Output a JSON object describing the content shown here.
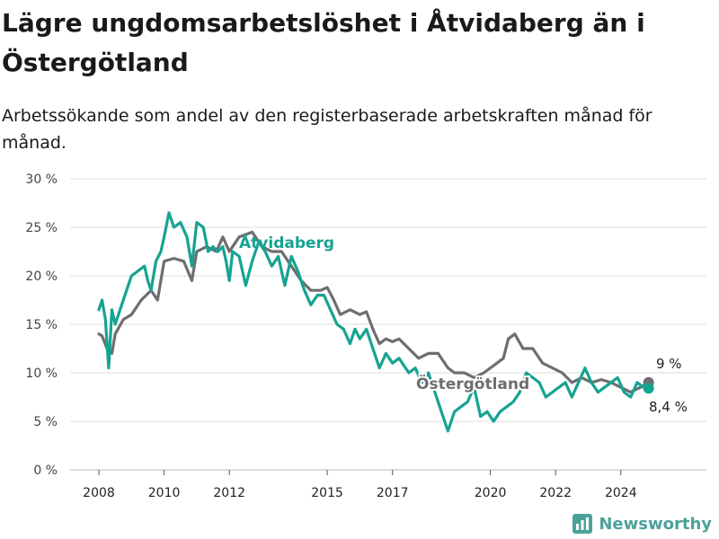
{
  "title": "Lägre ungdomsarbetslöshet i Åtvidaberg än i Östergötland",
  "subtitle": "Arbetssökande som andel av den registerbaserade arbetskraften månad för månad.",
  "brand": "Newsworthy",
  "colors": {
    "atvidaberg": "#16a392",
    "ostergotland": "#6e6e71",
    "grid": "#dddddd"
  },
  "chart_data": {
    "type": "line",
    "ylim": [
      0,
      30
    ],
    "xlim": [
      2007.5,
      2025.75
    ],
    "y_ticks": [
      0,
      5,
      10,
      15,
      20,
      25,
      30
    ],
    "y_tick_labels": [
      "0 %",
      "5 %",
      "10 %",
      "15 %",
      "20 %",
      "25 %",
      "30 %"
    ],
    "x_ticks": [
      2008,
      2010,
      2012,
      2015,
      2017,
      2020,
      2022,
      2024
    ],
    "x_tick_labels": [
      "2008",
      "2010",
      "2012",
      "2015",
      "2017",
      "2020",
      "2022",
      "2024"
    ],
    "grid": "horizontal",
    "series": [
      {
        "name": "Östergötland",
        "end_label": "9 %",
        "points": [
          [
            2008.0,
            14.0
          ],
          [
            2008.1,
            13.8
          ],
          [
            2008.25,
            12.5
          ],
          [
            2008.4,
            12.0
          ],
          [
            2008.5,
            14.0
          ],
          [
            2008.75,
            15.5
          ],
          [
            2009.0,
            16.0
          ],
          [
            2009.3,
            17.5
          ],
          [
            2009.6,
            18.5
          ],
          [
            2009.8,
            17.5
          ],
          [
            2010.0,
            21.5
          ],
          [
            2010.3,
            21.8
          ],
          [
            2010.6,
            21.5
          ],
          [
            2010.85,
            19.5
          ],
          [
            2011.0,
            22.5
          ],
          [
            2011.3,
            23.0
          ],
          [
            2011.6,
            22.5
          ],
          [
            2011.8,
            24.0
          ],
          [
            2012.0,
            22.5
          ],
          [
            2012.3,
            24.0
          ],
          [
            2012.7,
            24.5
          ],
          [
            2013.0,
            23.0
          ],
          [
            2013.3,
            22.5
          ],
          [
            2013.6,
            22.5
          ],
          [
            2013.9,
            21.0
          ],
          [
            2014.2,
            19.5
          ],
          [
            2014.5,
            18.5
          ],
          [
            2014.8,
            18.5
          ],
          [
            2015.0,
            18.8
          ],
          [
            2015.2,
            17.5
          ],
          [
            2015.4,
            16.0
          ],
          [
            2015.7,
            16.5
          ],
          [
            2016.0,
            16.0
          ],
          [
            2016.2,
            16.3
          ],
          [
            2016.4,
            14.5
          ],
          [
            2016.6,
            13.0
          ],
          [
            2016.8,
            13.5
          ],
          [
            2017.0,
            13.2
          ],
          [
            2017.2,
            13.5
          ],
          [
            2017.5,
            12.5
          ],
          [
            2017.8,
            11.5
          ],
          [
            2018.1,
            12.0
          ],
          [
            2018.4,
            12.0
          ],
          [
            2018.7,
            10.5
          ],
          [
            2018.9,
            10.0
          ],
          [
            2019.2,
            10.0
          ],
          [
            2019.5,
            9.5
          ],
          [
            2019.8,
            10.0
          ],
          [
            2020.0,
            10.5
          ],
          [
            2020.2,
            11.0
          ],
          [
            2020.4,
            11.5
          ],
          [
            2020.55,
            13.5
          ],
          [
            2020.75,
            14.0
          ],
          [
            2021.0,
            12.5
          ],
          [
            2021.3,
            12.5
          ],
          [
            2021.6,
            11.0
          ],
          [
            2021.9,
            10.5
          ],
          [
            2022.2,
            10.0
          ],
          [
            2022.5,
            9.0
          ],
          [
            2022.8,
            9.5
          ],
          [
            2023.1,
            9.0
          ],
          [
            2023.4,
            9.3
          ],
          [
            2023.7,
            9.0
          ],
          [
            2024.0,
            8.5
          ],
          [
            2024.3,
            8.0
          ],
          [
            2024.6,
            8.5
          ],
          [
            2024.85,
            9.0
          ]
        ]
      },
      {
        "name": "Åtvidaberg",
        "end_label": "8,4 %",
        "points": [
          [
            2008.0,
            16.5
          ],
          [
            2008.1,
            17.5
          ],
          [
            2008.2,
            15.5
          ],
          [
            2008.3,
            10.5
          ],
          [
            2008.4,
            16.5
          ],
          [
            2008.5,
            15.0
          ],
          [
            2008.75,
            17.5
          ],
          [
            2009.0,
            20.0
          ],
          [
            2009.2,
            20.5
          ],
          [
            2009.4,
            21.0
          ],
          [
            2009.5,
            19.5
          ],
          [
            2009.6,
            18.5
          ],
          [
            2009.75,
            21.5
          ],
          [
            2009.9,
            22.5
          ],
          [
            2010.0,
            24.0
          ],
          [
            2010.15,
            26.5
          ],
          [
            2010.3,
            25.0
          ],
          [
            2010.5,
            25.5
          ],
          [
            2010.7,
            24.0
          ],
          [
            2010.85,
            21.0
          ],
          [
            2011.0,
            25.5
          ],
          [
            2011.2,
            25.0
          ],
          [
            2011.35,
            22.5
          ],
          [
            2011.5,
            23.0
          ],
          [
            2011.65,
            22.5
          ],
          [
            2011.8,
            23.0
          ],
          [
            2011.9,
            21.5
          ],
          [
            2012.0,
            19.5
          ],
          [
            2012.1,
            22.5
          ],
          [
            2012.3,
            22.0
          ],
          [
            2012.5,
            19.0
          ],
          [
            2012.7,
            21.5
          ],
          [
            2012.9,
            23.5
          ],
          [
            2013.1,
            22.5
          ],
          [
            2013.3,
            21.0
          ],
          [
            2013.5,
            22.0
          ],
          [
            2013.7,
            19.0
          ],
          [
            2013.9,
            22.0
          ],
          [
            2014.1,
            20.5
          ],
          [
            2014.3,
            18.5
          ],
          [
            2014.5,
            17.0
          ],
          [
            2014.7,
            18.0
          ],
          [
            2014.9,
            18.0
          ],
          [
            2015.1,
            16.5
          ],
          [
            2015.3,
            15.0
          ],
          [
            2015.5,
            14.5
          ],
          [
            2015.7,
            13.0
          ],
          [
            2015.85,
            14.5
          ],
          [
            2016.0,
            13.5
          ],
          [
            2016.2,
            14.5
          ],
          [
            2016.4,
            12.5
          ],
          [
            2016.6,
            10.5
          ],
          [
            2016.8,
            12.0
          ],
          [
            2017.0,
            11.0
          ],
          [
            2017.2,
            11.5
          ],
          [
            2017.5,
            10.0
          ],
          [
            2017.7,
            10.5
          ],
          [
            2017.9,
            9.0
          ],
          [
            2018.1,
            10.0
          ],
          [
            2018.3,
            8.0
          ],
          [
            2018.5,
            6.0
          ],
          [
            2018.7,
            4.0
          ],
          [
            2018.9,
            6.0
          ],
          [
            2019.1,
            6.5
          ],
          [
            2019.3,
            7.0
          ],
          [
            2019.5,
            8.5
          ],
          [
            2019.7,
            5.5
          ],
          [
            2019.9,
            6.0
          ],
          [
            2020.1,
            5.0
          ],
          [
            2020.3,
            6.0
          ],
          [
            2020.5,
            6.5
          ],
          [
            2020.7,
            7.0
          ],
          [
            2020.9,
            8.0
          ],
          [
            2021.1,
            10.0
          ],
          [
            2021.3,
            9.5
          ],
          [
            2021.5,
            9.0
          ],
          [
            2021.7,
            7.5
          ],
          [
            2021.9,
            8.0
          ],
          [
            2022.1,
            8.5
          ],
          [
            2022.3,
            9.0
          ],
          [
            2022.5,
            7.5
          ],
          [
            2022.7,
            9.0
          ],
          [
            2022.9,
            10.5
          ],
          [
            2023.1,
            9.0
          ],
          [
            2023.3,
            8.0
          ],
          [
            2023.5,
            8.5
          ],
          [
            2023.7,
            9.0
          ],
          [
            2023.9,
            9.5
          ],
          [
            2024.1,
            8.0
          ],
          [
            2024.3,
            7.5
          ],
          [
            2024.5,
            9.0
          ],
          [
            2024.7,
            8.5
          ],
          [
            2024.85,
            8.4
          ]
        ]
      }
    ]
  }
}
